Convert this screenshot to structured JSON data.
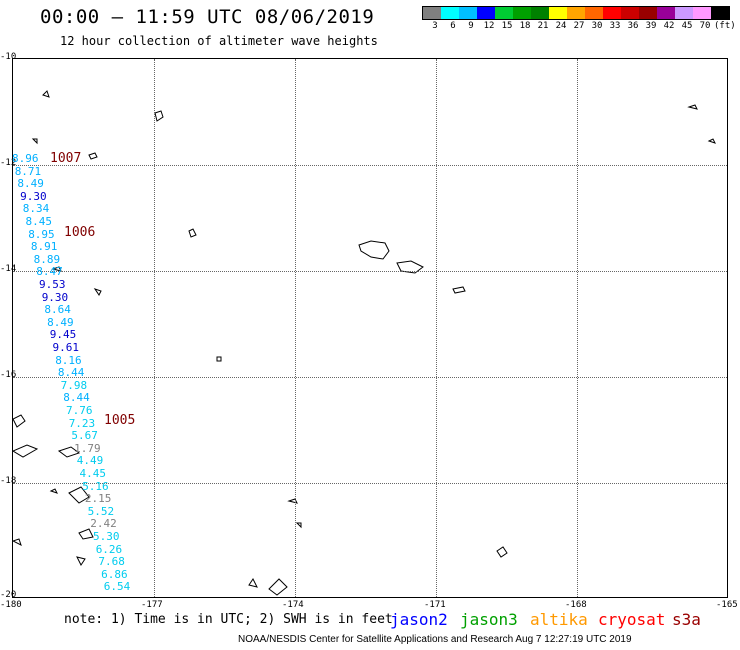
{
  "header": {
    "title": "00:00 – 11:59 UTC 08/06/2019",
    "subtitle": "12 hour collection of altimeter wave heights"
  },
  "legend": {
    "colors": [
      "#808080",
      "#00ffff",
      "#00bfff",
      "#0000ff",
      "#00cc33",
      "#00a000",
      "#008000",
      "#ffff00",
      "#ffa500",
      "#ff6600",
      "#ff0000",
      "#cc0000",
      "#990000",
      "#990099",
      "#cc99ff",
      "#ff99ff",
      "#000000"
    ],
    "labels": [
      "3",
      "6",
      "9",
      "12",
      "15",
      "18",
      "21",
      "24",
      "27",
      "30",
      "33",
      "36",
      "39",
      "42",
      "45",
      "70",
      "(ft)"
    ]
  },
  "axes": {
    "lat_labels": [
      "-10",
      "-12",
      "-14",
      "-16",
      "-18",
      "-20"
    ],
    "lon_labels": [
      "-180",
      "-177",
      "-174",
      "-171",
      "-168",
      "-165"
    ]
  },
  "pressure_labels": [
    "1007",
    "1006",
    "1005"
  ],
  "wave_heights": [
    {
      "value": "8.96",
      "color": "#00b0ff"
    },
    {
      "value": "8.71",
      "color": "#00b0ff"
    },
    {
      "value": "8.49",
      "color": "#00b0ff"
    },
    {
      "value": "9.30",
      "color": "#0000cc"
    },
    {
      "value": "8.34",
      "color": "#00b0ff"
    },
    {
      "value": "8.45",
      "color": "#00b0ff"
    },
    {
      "value": "8.95",
      "color": "#00b0ff"
    },
    {
      "value": "8.91",
      "color": "#00b0ff"
    },
    {
      "value": "8.89",
      "color": "#00b0ff"
    },
    {
      "value": "8.47",
      "color": "#00b0ff"
    },
    {
      "value": "9.53",
      "color": "#0000cc"
    },
    {
      "value": "9.30",
      "color": "#0000cc"
    },
    {
      "value": "8.64",
      "color": "#00b0ff"
    },
    {
      "value": "8.49",
      "color": "#00b0ff"
    },
    {
      "value": "9.45",
      "color": "#0000cc"
    },
    {
      "value": "9.61",
      "color": "#0000cc"
    },
    {
      "value": "8.16",
      "color": "#00b0ff"
    },
    {
      "value": "8.44",
      "color": "#00b0ff"
    },
    {
      "value": "7.98",
      "color": "#00ccee"
    },
    {
      "value": "8.44",
      "color": "#00b0ff"
    },
    {
      "value": "7.76",
      "color": "#00ccee"
    },
    {
      "value": "7.23",
      "color": "#00ccee"
    },
    {
      "value": "5.67",
      "color": "#00ccee"
    },
    {
      "value": "1.79",
      "color": "#808080"
    },
    {
      "value": "4.49",
      "color": "#00ccee"
    },
    {
      "value": "4.45",
      "color": "#00ccee"
    },
    {
      "value": "5.16",
      "color": "#00ccee"
    },
    {
      "value": "2.15",
      "color": "#808080"
    },
    {
      "value": "5.52",
      "color": "#00ccee"
    },
    {
      "value": "2.42",
      "color": "#808080"
    },
    {
      "value": "5.30",
      "color": "#00ccee"
    },
    {
      "value": "6.26",
      "color": "#00ccee"
    },
    {
      "value": "7.68",
      "color": "#00ccee"
    },
    {
      "value": "6.86",
      "color": "#00ccee"
    },
    {
      "value": "6.54",
      "color": "#00ccee"
    }
  ],
  "footer": {
    "note": "note:  1) Time is in UTC; 2) SWH is in feet",
    "missions": [
      {
        "name": "jason2",
        "color": "#0000ff"
      },
      {
        "name": "jason3",
        "color": "#00a000"
      },
      {
        "name": "altika",
        "color": "#ff9900"
      },
      {
        "name": "cryosat",
        "color": "#ff0000"
      },
      {
        "name": "s3a",
        "color": "#990000"
      }
    ],
    "credit": "NOAA/NESDIS Center for Satellite Applications and Research    Aug  7 12:27:19 UTC 2019"
  }
}
